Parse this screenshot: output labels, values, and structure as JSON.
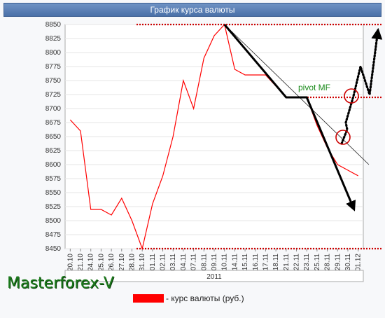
{
  "header": {
    "title": "График курса валюты"
  },
  "brand": {
    "text": "Masterforex-V"
  },
  "legend": {
    "label": "- курс валюты (руб.)",
    "color": "#ff0000"
  },
  "annotation": {
    "pivot_label": "pivot MF"
  },
  "colors": {
    "price_line": "#ff0000",
    "level_lines": "#cc0000",
    "trend_arrow": "#000000",
    "forecast_arrow": "#000000",
    "annotation_text": "#1a8a1a",
    "circle": "#cc0000"
  },
  "chart_data": {
    "type": "line",
    "title": "График курса валюты",
    "xlabel": "2011",
    "ylabel": "",
    "ylim": [
      8450,
      8850
    ],
    "grid": "horizontal",
    "x_ticks": [
      "20.10",
      "21.10",
      "24.10",
      "25.10",
      "26.10",
      "27.10",
      "28.10",
      "31.10",
      "01.11",
      "02.11",
      "03.11",
      "04.11",
      "07.11",
      "08.11",
      "09.11",
      "10.11",
      "11.11",
      "14.11",
      "15.11",
      "16.11",
      "17.11",
      "18.11",
      "21.11",
      "22.11",
      "23.11",
      "24.11",
      "25.11",
      "28.11",
      "29.11",
      "30.11",
      "01.12"
    ],
    "x_tick_labels_shown": [
      "20.10",
      "21.10",
      "24.10",
      "25.10",
      "26.10",
      "27.10",
      "28.10",
      "31.10",
      "01.11",
      "02.11",
      "03.11",
      "04.11",
      "07.11",
      "08.11",
      "09.11",
      "10.11",
      "14.11",
      "15.11",
      "16.11",
      "17.11",
      "18.11",
      "21.11",
      "22.11",
      "23.11",
      "25.11",
      "28.11",
      "29.11",
      "30.11",
      "01.12"
    ],
    "y_ticks": [
      8450,
      8475,
      8500,
      8525,
      8550,
      8575,
      8600,
      8625,
      8650,
      8675,
      8700,
      8725,
      8750,
      8775,
      8800,
      8825,
      8850
    ],
    "series": [
      {
        "values_by_label": [
          [
            "20.10",
            8680
          ],
          [
            "21.10",
            8660
          ],
          [
            "24.10",
            8520
          ],
          [
            "25.10",
            8520
          ],
          [
            "26.10",
            8510
          ],
          [
            "27.10",
            8540
          ],
          [
            "28.10",
            8500
          ],
          [
            "31.10",
            8450
          ],
          [
            "01.11",
            8530
          ],
          [
            "02.11",
            8580
          ],
          [
            "03.11",
            8650
          ],
          [
            "04.11",
            8750
          ],
          [
            "07.11",
            8700
          ],
          [
            "08.11",
            8790
          ],
          [
            "09.11",
            8830
          ],
          [
            "10.11",
            8850
          ],
          [
            "14.11",
            8770
          ],
          [
            "15.11",
            8760
          ],
          [
            "16.11",
            8760
          ],
          [
            "17.11",
            8760
          ],
          [
            "18.11",
            8740
          ],
          [
            "21.11",
            8720
          ],
          [
            "22.11",
            8720
          ],
          [
            "23.11",
            8720
          ],
          [
            "25.11",
            8670
          ],
          [
            "28.11",
            8630
          ],
          [
            "29.11",
            8600
          ],
          [
            "30.11",
            8590
          ],
          [
            "01.12",
            8580
          ]
        ]
      }
    ],
    "levels": [
      8850,
      8720,
      8450
    ],
    "trend_line": {
      "from": [
        "10.11",
        8850
      ],
      "to": [
        "01.12+",
        8590
      ]
    },
    "trend_arrow": [
      [
        "10.11",
        8850
      ],
      [
        "21.11",
        8720
      ],
      [
        "23.11",
        8720
      ],
      [
        "30.11+",
        8520
      ]
    ]
  }
}
